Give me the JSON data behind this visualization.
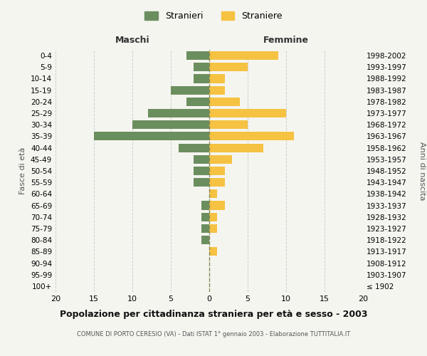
{
  "age_groups": [
    "100+",
    "95-99",
    "90-94",
    "85-89",
    "80-84",
    "75-79",
    "70-74",
    "65-69",
    "60-64",
    "55-59",
    "50-54",
    "45-49",
    "40-44",
    "35-39",
    "30-34",
    "25-29",
    "20-24",
    "15-19",
    "10-14",
    "5-9",
    "0-4"
  ],
  "birth_years": [
    "≤ 1902",
    "1903-1907",
    "1908-1912",
    "1913-1917",
    "1918-1922",
    "1923-1927",
    "1928-1932",
    "1933-1937",
    "1938-1942",
    "1943-1947",
    "1948-1952",
    "1953-1957",
    "1958-1962",
    "1963-1967",
    "1968-1972",
    "1973-1977",
    "1978-1982",
    "1983-1987",
    "1988-1992",
    "1993-1997",
    "1998-2002"
  ],
  "maschi": [
    0,
    0,
    0,
    0,
    1,
    1,
    1,
    1,
    0,
    2,
    2,
    2,
    4,
    15,
    10,
    8,
    3,
    5,
    2,
    2,
    3
  ],
  "femmine": [
    0,
    0,
    0,
    1,
    0,
    1,
    1,
    2,
    1,
    2,
    2,
    3,
    7,
    11,
    5,
    10,
    4,
    2,
    2,
    5,
    9
  ],
  "maschi_color": "#6b8e5e",
  "femmine_color": "#f5c242",
  "title": "Popolazione per cittadinanza straniera per età e sesso - 2003",
  "subtitle": "COMUNE DI PORTO CERESIO (VA) - Dati ISTAT 1° gennaio 2003 - Elaborazione TUTTITALIA.IT",
  "xlabel_left": "Maschi",
  "xlabel_right": "Femmine",
  "ylabel_left": "Fasce di età",
  "ylabel_right": "Anni di nascita",
  "xlim": 20,
  "background_color": "#f5f5f0",
  "legend_stranieri": "Stranieri",
  "legend_straniere": "Straniere",
  "grid_color": "#cccccc",
  "bar_height": 0.75
}
